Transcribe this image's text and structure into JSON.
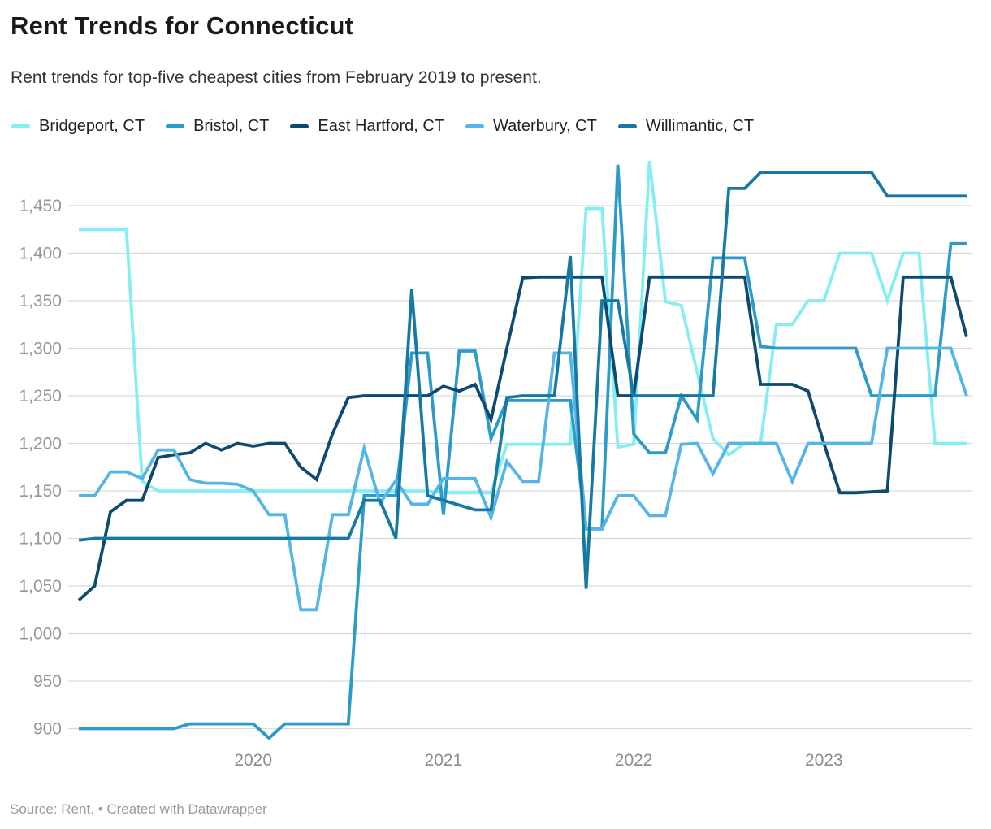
{
  "header": {
    "title": "Rent Trends for Connecticut",
    "subtitle": "Rent trends for top-five cheapest cities from February 2019 to present."
  },
  "footer": {
    "source": "Source: Rent. • Created with Datawrapper"
  },
  "colors": {
    "grid": "#d9d9d9",
    "axis_text": "#979797",
    "background": "#ffffff"
  },
  "chart_data": {
    "type": "line",
    "title": "Rent Trends for Connecticut",
    "subtitle": "Rent trends for top-five cheapest cities from February 2019 to present.",
    "xlabel": "",
    "ylabel": "",
    "grid": "horizontal",
    "legend_position": "top",
    "ylim": [
      880,
      1505
    ],
    "y_ticks": [
      900,
      950,
      1000,
      1050,
      1100,
      1150,
      1200,
      1250,
      1300,
      1350,
      1400,
      1450
    ],
    "x_tick_labels": [
      "2020",
      "2021",
      "2022",
      "2023"
    ],
    "x": [
      "2019-02",
      "2019-03",
      "2019-04",
      "2019-05",
      "2019-06",
      "2019-07",
      "2019-08",
      "2019-09",
      "2019-10",
      "2019-11",
      "2019-12",
      "2020-01",
      "2020-02",
      "2020-03",
      "2020-04",
      "2020-05",
      "2020-06",
      "2020-07",
      "2020-08",
      "2020-09",
      "2020-10",
      "2020-11",
      "2020-12",
      "2021-01",
      "2021-02",
      "2021-03",
      "2021-04",
      "2021-05",
      "2021-06",
      "2021-07",
      "2021-08",
      "2021-09",
      "2021-10",
      "2021-11",
      "2021-12",
      "2022-01",
      "2022-02",
      "2022-03",
      "2022-04",
      "2022-05",
      "2022-06",
      "2022-07",
      "2022-08",
      "2022-09",
      "2022-10",
      "2022-11",
      "2022-12",
      "2023-01",
      "2023-02",
      "2023-03",
      "2023-04",
      "2023-05",
      "2023-06",
      "2023-07",
      "2023-08",
      "2023-09",
      "2023-10"
    ],
    "series": [
      {
        "name": "Bridgeport, CT",
        "color": "#86eef2",
        "values": [
          1425,
          1425,
          1425,
          1425,
          1160,
          1150,
          1150,
          1150,
          1150,
          1150,
          1150,
          1150,
          1150,
          1150,
          1150,
          1150,
          1150,
          1150,
          1150,
          1150,
          1150,
          1150,
          1150,
          1148,
          1148,
          1148,
          1148,
          1199,
          1199,
          1199,
          1199,
          1199,
          1447,
          1447,
          1196,
          1199,
          1497,
          1349,
          1345,
          1275,
          1205,
          1188,
          1200,
          1200,
          1325,
          1325,
          1350,
          1350,
          1400,
          1400,
          1400,
          1350,
          1400,
          1400,
          1200,
          1200,
          1200
        ]
      },
      {
        "name": "Bristol, CT",
        "color": "#2d9bc9",
        "values": [
          900,
          900,
          900,
          900,
          900,
          900,
          900,
          905,
          905,
          905,
          905,
          905,
          890,
          905,
          905,
          905,
          905,
          905,
          1145,
          1145,
          1145,
          1295,
          1295,
          1125,
          1297,
          1297,
          1205,
          1245,
          1245,
          1245,
          1245,
          1245,
          1110,
          1110,
          1493,
          1210,
          1190,
          1190,
          1250,
          1225,
          1395,
          1395,
          1395,
          1302,
          1300,
          1300,
          1300,
          1300,
          1300,
          1300,
          1250,
          1250,
          1250,
          1250,
          1250,
          1410,
          1410
        ]
      },
      {
        "name": "East Hartford, CT",
        "color": "#0e4a70",
        "values": [
          1035,
          1050,
          1128,
          1140,
          1140,
          1185,
          1188,
          1190,
          1200,
          1193,
          1200,
          1197,
          1200,
          1200,
          1175,
          1162,
          1210,
          1248,
          1250,
          1250,
          1250,
          1250,
          1250,
          1260,
          1255,
          1262,
          1225,
          1300,
          1374,
          1375,
          1375,
          1375,
          1375,
          1375,
          1250,
          1250,
          1375,
          1375,
          1375,
          1375,
          1375,
          1375,
          1375,
          1262,
          1262,
          1262,
          1255,
          1200,
          1148,
          1148,
          1149,
          1150,
          1375,
          1375,
          1375,
          1375,
          1312
        ]
      },
      {
        "name": "Waterbury, CT",
        "color": "#56b5e7",
        "values": [
          1145,
          1145,
          1170,
          1170,
          1163,
          1193,
          1193,
          1162,
          1158,
          1158,
          1157,
          1150,
          1125,
          1125,
          1025,
          1025,
          1125,
          1125,
          1195,
          1137,
          1161,
          1136,
          1136,
          1163,
          1163,
          1163,
          1122,
          1181,
          1160,
          1160,
          1295,
          1295,
          1110,
          1110,
          1145,
          1145,
          1124,
          1124,
          1199,
          1200,
          1168,
          1200,
          1200,
          1200,
          1200,
          1160,
          1200,
          1200,
          1200,
          1200,
          1200,
          1300,
          1300,
          1300,
          1300,
          1300,
          1250
        ]
      },
      {
        "name": "Willimantic, CT",
        "color": "#1779a3",
        "values": [
          1098,
          1100,
          1100,
          1100,
          1100,
          1100,
          1100,
          1100,
          1100,
          1100,
          1100,
          1100,
          1100,
          1100,
          1100,
          1100,
          1100,
          1100,
          1140,
          1140,
          1100,
          1362,
          1145,
          1140,
          1135,
          1130,
          1130,
          1248,
          1250,
          1250,
          1250,
          1397,
          1047,
          1350,
          1350,
          1250,
          1250,
          1250,
          1250,
          1250,
          1250,
          1468,
          1468,
          1485,
          1485,
          1485,
          1485,
          1485,
          1485,
          1485,
          1485,
          1460,
          1460,
          1460,
          1460,
          1460,
          1460
        ]
      }
    ]
  }
}
